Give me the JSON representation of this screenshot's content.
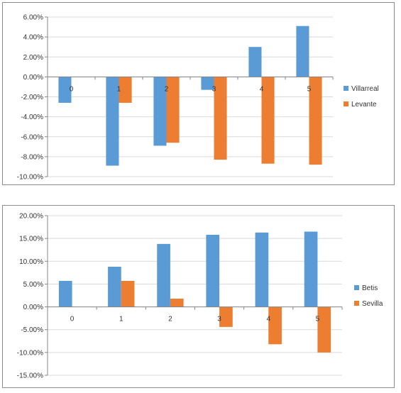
{
  "chart_data": [
    {
      "type": "bar",
      "categories": [
        "0",
        "1",
        "2",
        "3",
        "4",
        "5"
      ],
      "series": [
        {
          "name": "Villarreal",
          "color": "#5b9bd5",
          "values": [
            -2.6,
            -8.9,
            -6.9,
            -1.3,
            3.0,
            5.1
          ]
        },
        {
          "name": "Levante",
          "color": "#ed7d31",
          "values": [
            0.0,
            -2.6,
            -6.6,
            -8.3,
            -8.7,
            -8.8
          ]
        }
      ],
      "ylim": [
        -10,
        6
      ],
      "ystep": 2,
      "y_tick_labels": [
        "6.00%",
        "4.00%",
        "2.00%",
        "0.00%",
        "-2.00%",
        "-4.00%",
        "-6.00%",
        "-8.00%",
        "-10.00%"
      ],
      "grid": true,
      "legend_position": "right"
    },
    {
      "type": "bar",
      "categories": [
        "0",
        "1",
        "2",
        "3",
        "4",
        "5"
      ],
      "series": [
        {
          "name": "Betis",
          "color": "#5b9bd5",
          "values": [
            5.7,
            8.8,
            13.8,
            15.8,
            16.3,
            16.5
          ]
        },
        {
          "name": "Sevilla",
          "color": "#ed7d31",
          "values": [
            0.0,
            5.7,
            1.8,
            -4.4,
            -8.2,
            -10.0
          ]
        }
      ],
      "ylim": [
        -15,
        20
      ],
      "ystep": 5,
      "y_tick_labels": [
        "20.00%",
        "15.00%",
        "10.00%",
        "5.00%",
        "0.00%",
        "-5.00%",
        "-10.00%",
        "-15.00%"
      ],
      "grid": true,
      "legend_position": "right"
    }
  ]
}
